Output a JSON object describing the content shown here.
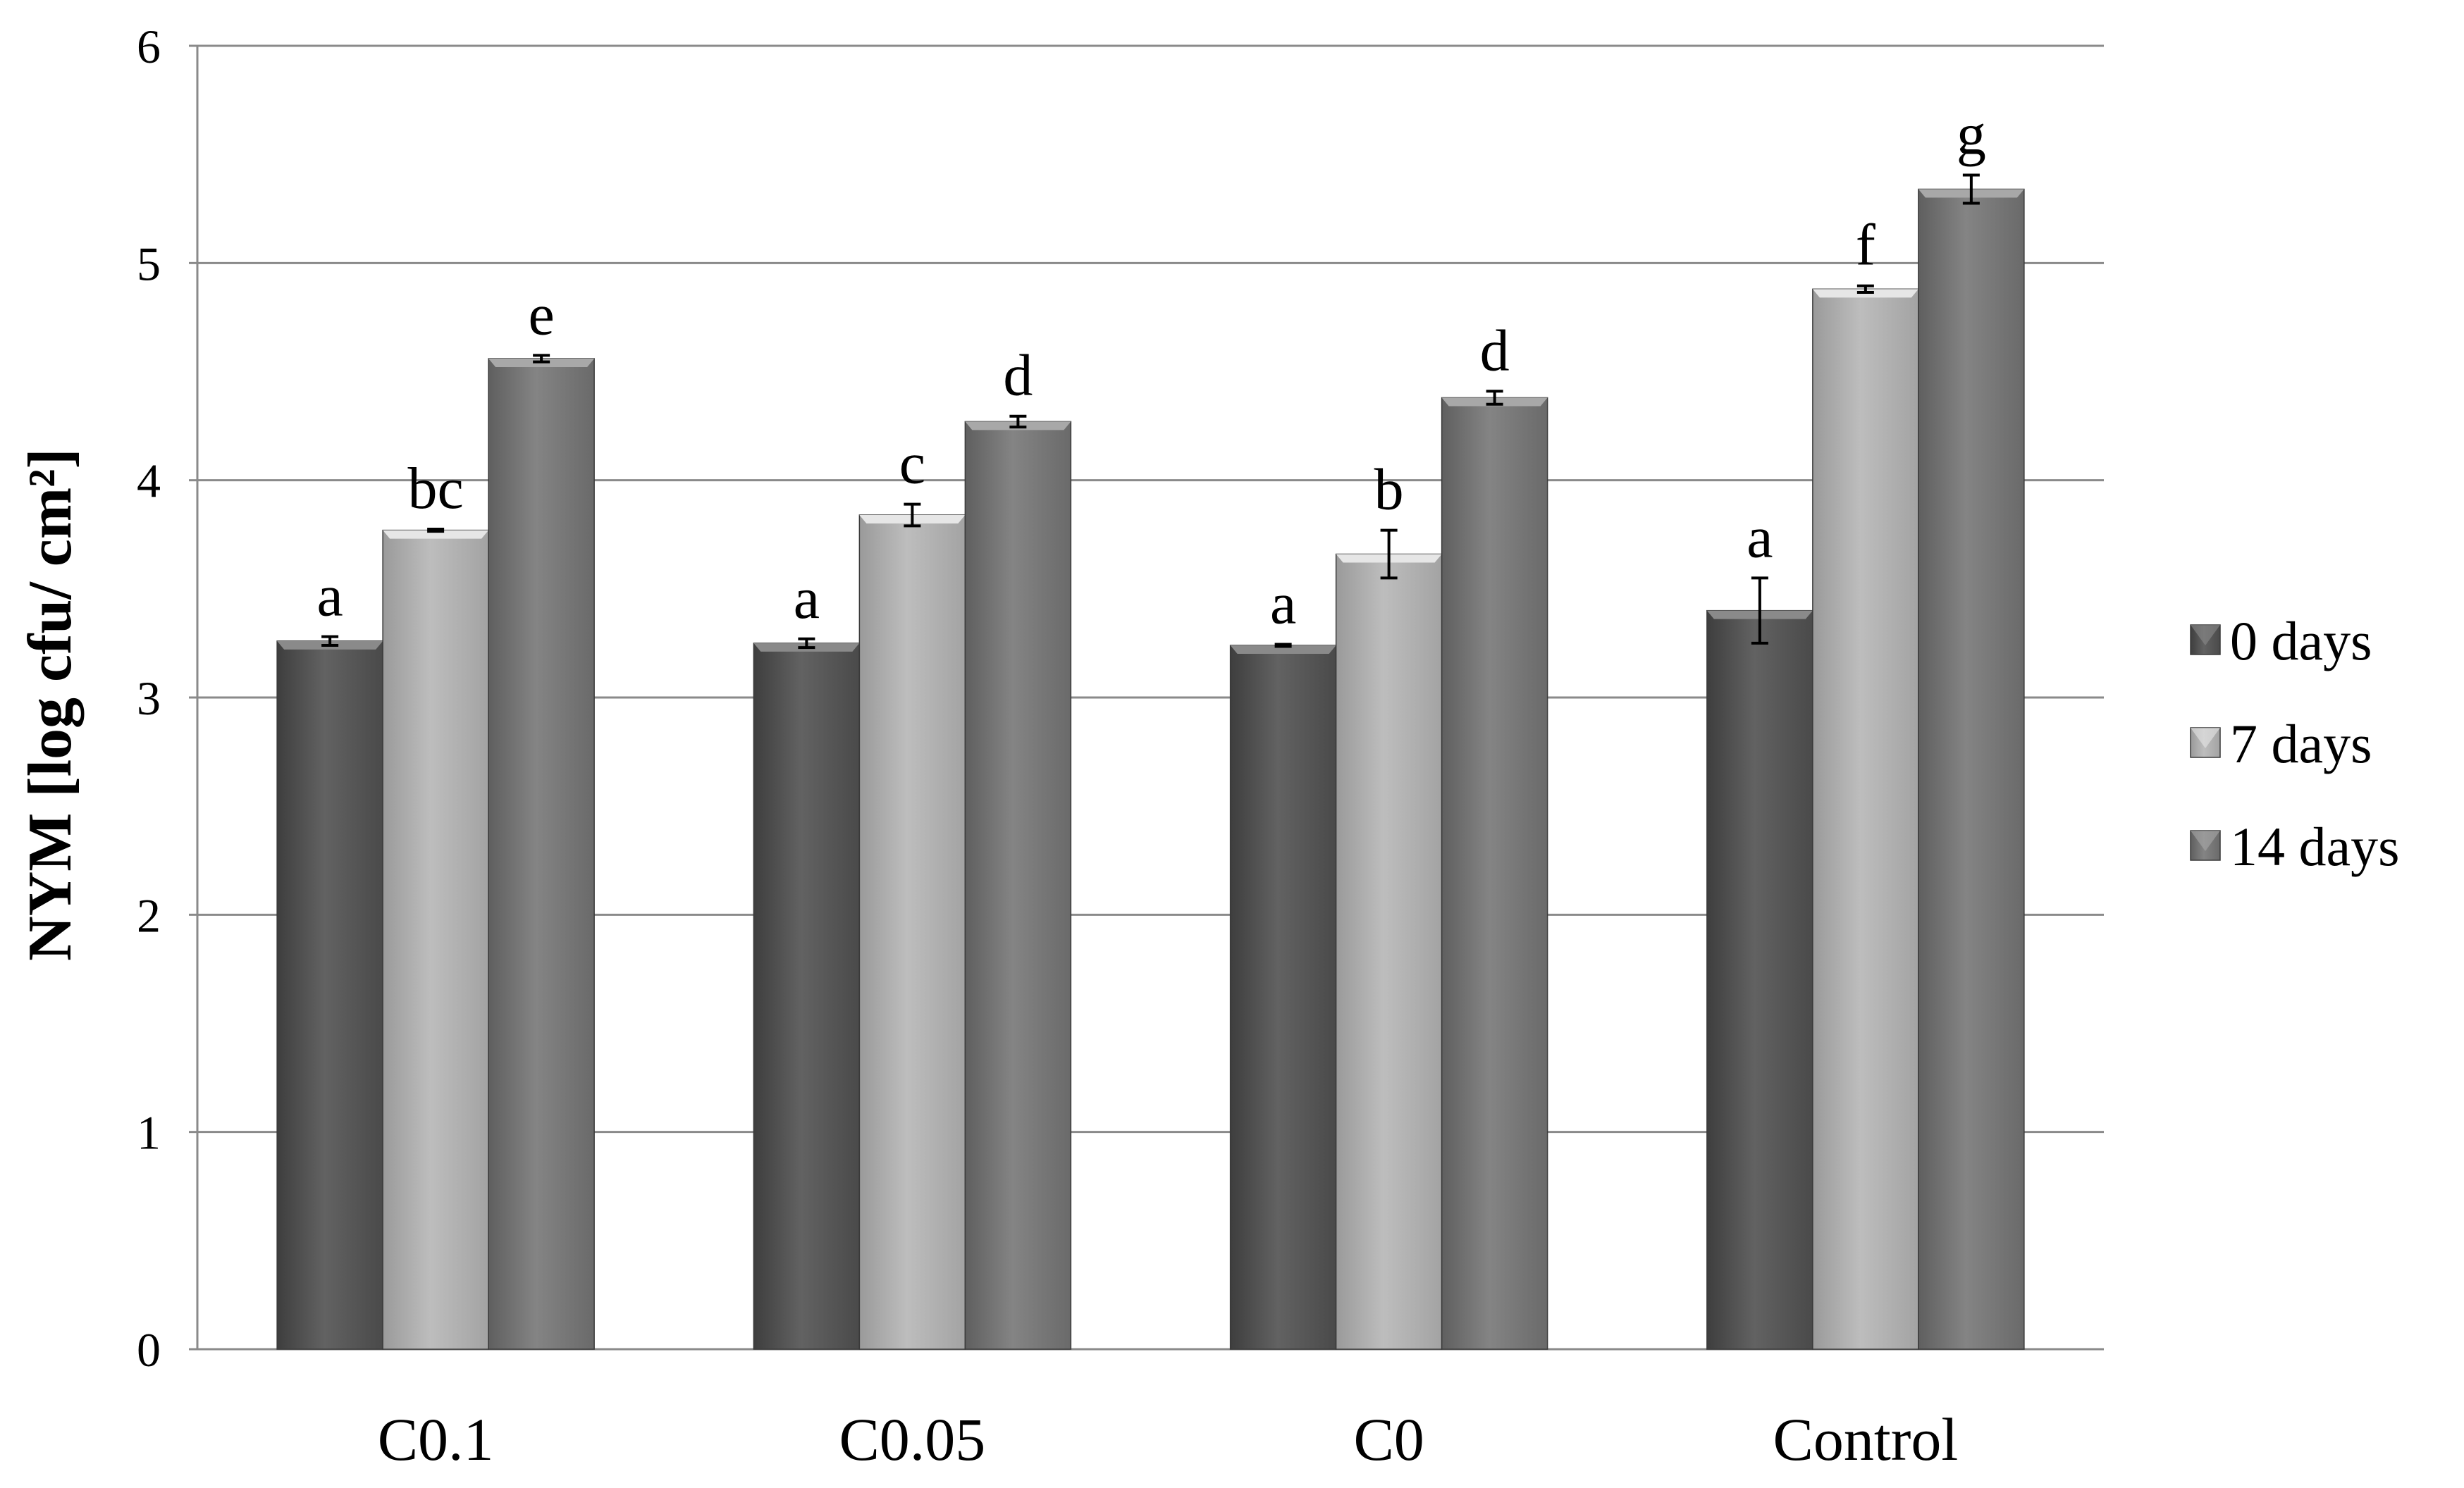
{
  "chart_data": {
    "type": "bar",
    "title": "",
    "xlabel": "",
    "ylabel": "NYM [log cfu/ cm²]",
    "ylim": [
      0,
      6
    ],
    "yticks": [
      0,
      1,
      2,
      3,
      4,
      5,
      6
    ],
    "grid": true,
    "legend_position": "right",
    "categories": [
      "C0.1",
      "C0.05",
      "C0",
      "Control"
    ],
    "series": [
      {
        "name": "0 days",
        "color": "#5e5e5e",
        "values": [
          3.26,
          3.25,
          3.24,
          3.4
        ],
        "errors": [
          0.02,
          0.02,
          0.005,
          0.15
        ],
        "labels": [
          "a",
          "a",
          "a",
          "a"
        ]
      },
      {
        "name": "7 days",
        "color": "#b4b4b4",
        "values": [
          3.77,
          3.84,
          3.66,
          4.88
        ],
        "errors": [
          0.005,
          0.05,
          0.11,
          0.015
        ],
        "labels": [
          "bc",
          "c",
          "b",
          "f"
        ]
      },
      {
        "name": "14 days",
        "color": "#7d7d7d",
        "values": [
          4.56,
          4.27,
          4.38,
          5.34
        ],
        "errors": [
          0.015,
          0.025,
          0.03,
          0.065
        ],
        "labels": [
          "e",
          "d",
          "d",
          "g"
        ]
      }
    ]
  }
}
